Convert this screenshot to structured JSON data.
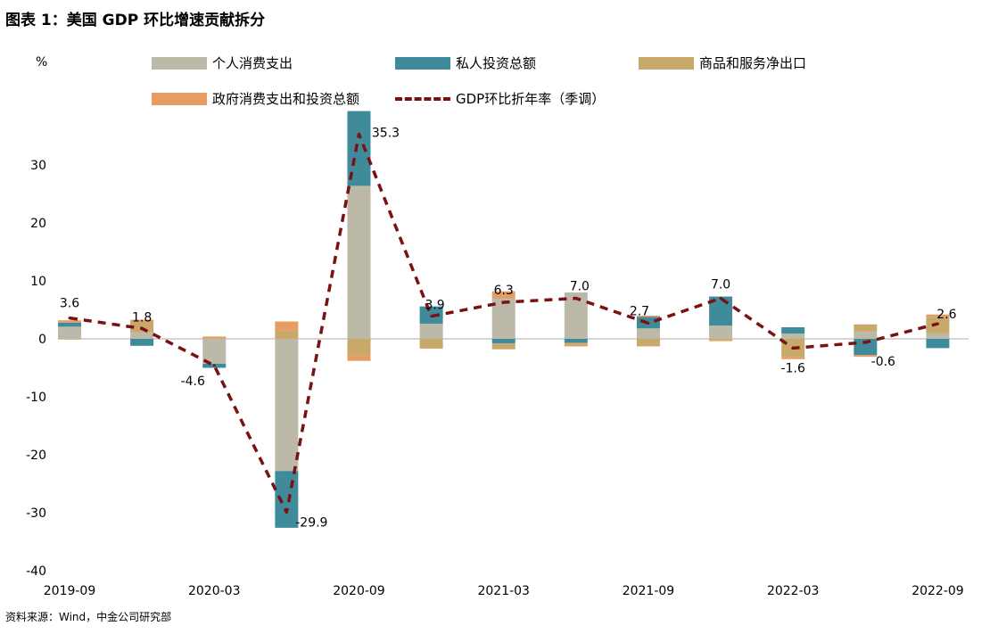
{
  "title": "图表 1：美国 GDP 环比增速贡献拆分",
  "source": "资料来源：Wind，中金公司研究部",
  "colors": {
    "consumption": "#bcb9a8",
    "investment": "#3f8b9c",
    "net_exports": "#c9a86c",
    "government": "#e69c62",
    "gdp_line": "#7a1212"
  },
  "chart_data": {
    "type": "bar",
    "stacked": true,
    "title": "美国 GDP 环比增速贡献拆分",
    "ylabel": "%",
    "ylim": [
      -40,
      40
    ],
    "yticks": [
      -40,
      -30,
      -20,
      -10,
      0,
      10,
      20,
      30
    ],
    "categories": [
      "2019-09",
      "2019-12",
      "2020-03",
      "2020-06",
      "2020-09",
      "2020-12",
      "2021-03",
      "2021-06",
      "2021-09",
      "2021-12",
      "2022-03",
      "2022-06",
      "2022-09"
    ],
    "xtick_labels": [
      "2019-09",
      "2020-03",
      "2020-09",
      "2021-03",
      "2021-09",
      "2022-03",
      "2022-09"
    ],
    "series": [
      {
        "name": "个人消费支出",
        "key": "consumption",
        "values": [
          2.1,
          1.1,
          -4.3,
          -22.8,
          26.4,
          2.6,
          7.0,
          8.0,
          1.8,
          2.3,
          0.9,
          1.3,
          1.0
        ]
      },
      {
        "name": "私人投资总额",
        "key": "investment",
        "values": [
          0.7,
          -1.2,
          -0.7,
          -9.8,
          12.9,
          3.0,
          -0.8,
          -0.7,
          2.0,
          5.0,
          1.1,
          -2.8,
          -1.6
        ]
      },
      {
        "name": "商品和服务净出口",
        "key": "net_exports",
        "values": [
          -0.1,
          1.9,
          0.1,
          1.4,
          -2.9,
          -1.6,
          -1.0,
          -0.2,
          -1.3,
          -0.2,
          -3.1,
          1.2,
          2.8
        ]
      },
      {
        "name": "政府消费支出和投资总额",
        "key": "government",
        "values": [
          0.4,
          0.3,
          0.3,
          1.6,
          -0.9,
          -0.1,
          1.2,
          -0.4,
          0.2,
          -0.2,
          -0.4,
          -0.3,
          0.4
        ]
      }
    ],
    "line": {
      "name": "GDP环比折年率（季调）",
      "key": "gdp_line",
      "values": [
        3.6,
        1.8,
        -4.6,
        -29.9,
        35.3,
        3.9,
        6.3,
        7.0,
        2.7,
        7.0,
        -1.6,
        -0.6,
        2.6
      ]
    },
    "data_labels": [
      {
        "index": 0,
        "text": "3.6"
      },
      {
        "index": 1,
        "text": "1.8"
      },
      {
        "index": 2,
        "text": "-4.6"
      },
      {
        "index": 3,
        "text": "-29.9"
      },
      {
        "index": 4,
        "text": "35.3"
      },
      {
        "index": 5,
        "text": "3.9"
      },
      {
        "index": 6,
        "text": "6.3"
      },
      {
        "index": 7,
        "text": "7.0"
      },
      {
        "index": 8,
        "text": "2.7"
      },
      {
        "index": 9,
        "text": "7.0"
      },
      {
        "index": 10,
        "text": "-1.6"
      },
      {
        "index": 11,
        "text": "-0.6"
      },
      {
        "index": 12,
        "text": "2.6"
      }
    ]
  }
}
